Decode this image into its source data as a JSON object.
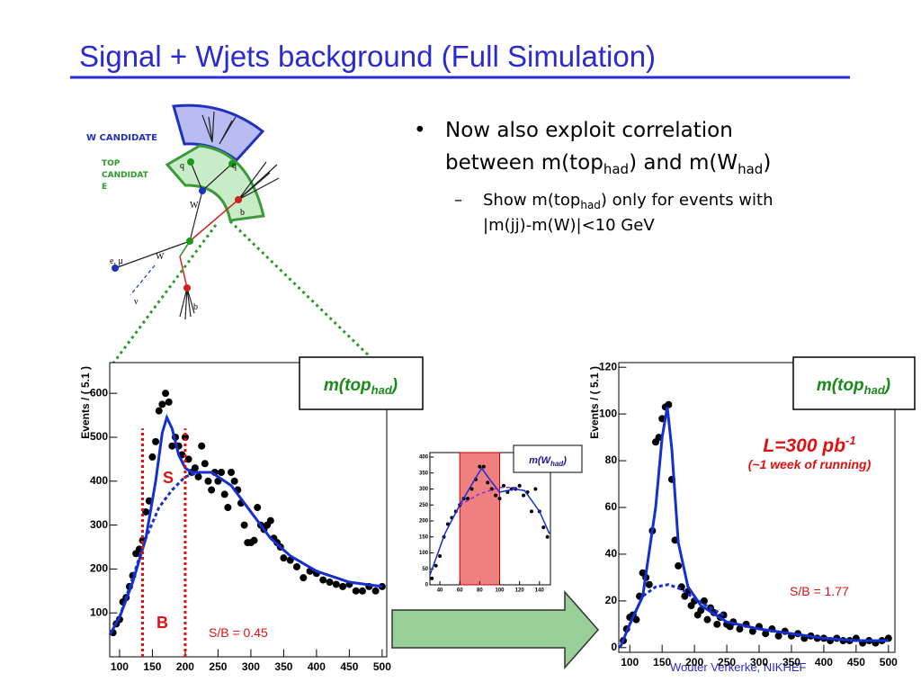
{
  "title": "Signal + Wjets background (Full Simulation)",
  "diagram": {
    "w_candidate": "W CANDIDATE",
    "top_candidate": [
      "TOP",
      "CANDIDAT",
      "E"
    ],
    "labels": [
      "q",
      "q",
      "W",
      "b",
      "e, μ",
      "W",
      "b",
      "ν"
    ]
  },
  "bullet": {
    "line1": "Now also exploit correlation",
    "line2": [
      "between m(top",
      "had",
      ") and m(W",
      "had",
      ")"
    ]
  },
  "subbullet": {
    "line1": [
      "Show m(top",
      "had",
      ") only for events with"
    ],
    "line2": "|m(jj)-m(W)|<10 GeV"
  },
  "footer": "Wouter Verkerke, NIKHEF",
  "chart_data": [
    {
      "type": "scatter",
      "y_label": "Events / ( 5.1 )",
      "box_label": [
        "m(top",
        "had",
        ")"
      ],
      "annotations": [
        "S",
        "B",
        "S/B = 0.45"
      ],
      "xlim": [
        85,
        507
      ],
      "ylim": [
        0,
        670
      ],
      "xticks": [
        100,
        150,
        200,
        250,
        300,
        350,
        400,
        450,
        500
      ],
      "yticks": [
        100,
        200,
        300,
        400,
        500,
        600
      ],
      "color": "#000000",
      "x": [
        90,
        95,
        100,
        105,
        110,
        115,
        120,
        125,
        130,
        135,
        140,
        145,
        150,
        155,
        160,
        165,
        170,
        175,
        180,
        185,
        190,
        195,
        200,
        205,
        210,
        215,
        220,
        225,
        230,
        235,
        240,
        245,
        250,
        255,
        260,
        265,
        270,
        275,
        280,
        285,
        290,
        295,
        300,
        305,
        310,
        315,
        320,
        325,
        330,
        335,
        340,
        345,
        350,
        360,
        370,
        380,
        390,
        400,
        410,
        420,
        430,
        440,
        450,
        460,
        470,
        480,
        490,
        500
      ],
      "values": [
        55,
        75,
        85,
        125,
        135,
        160,
        185,
        235,
        245,
        265,
        330,
        355,
        455,
        490,
        560,
        575,
        600,
        580,
        480,
        500,
        480,
        460,
        500,
        450,
        420,
        430,
        410,
        480,
        440,
        400,
        380,
        420,
        400,
        420,
        370,
        340,
        420,
        400,
        380,
        350,
        300,
        260,
        260,
        265,
        340,
        300,
        290,
        300,
        310,
        270,
        260,
        250,
        225,
        220,
        205,
        180,
        195,
        190,
        175,
        170,
        165,
        160,
        165,
        150,
        150,
        160,
        150,
        160
      ],
      "lines": [
        {
          "color": "#1530d0",
          "dash": false,
          "x": [
            85,
            100,
            120,
            140,
            155,
            165,
            172,
            180,
            190,
            200,
            210,
            240,
            270,
            300,
            330,
            360,
            400,
            450,
            500
          ],
          "values": [
            50,
            90,
            170,
            270,
            400,
            510,
            545,
            520,
            460,
            430,
            420,
            420,
            390,
            330,
            270,
            230,
            195,
            170,
            160
          ]
        },
        {
          "color": "#1530d0",
          "dash": true,
          "x": [
            100,
            140,
            160,
            180,
            200,
            220
          ],
          "values": [
            90,
            270,
            340,
            380,
            410,
            420
          ]
        }
      ],
      "markers_x": [
        135,
        200
      ],
      "marker_color": "#e01010"
    },
    {
      "type": "scatter",
      "box_label": [
        "m(W",
        "had",
        ")"
      ],
      "xlim": [
        30,
        151
      ],
      "ylim": [
        0,
        414
      ],
      "xticks": [
        40,
        60,
        80,
        100,
        120,
        140
      ],
      "yticks": [
        0,
        50,
        100,
        150,
        200,
        250,
        300,
        350,
        400
      ],
      "color": "#000000",
      "x": [
        32,
        36,
        40,
        44,
        48,
        52,
        56,
        60,
        64,
        68,
        72,
        76,
        80,
        84,
        88,
        92,
        96,
        100,
        104,
        108,
        112,
        116,
        120,
        124,
        128,
        132,
        136,
        140,
        144,
        148
      ],
      "values": [
        20,
        60,
        90,
        150,
        190,
        210,
        230,
        250,
        270,
        270,
        300,
        330,
        370,
        370,
        320,
        300,
        280,
        270,
        310,
        290,
        300,
        300,
        310,
        280,
        290,
        230,
        300,
        230,
        180,
        150
      ],
      "lines": [
        {
          "color": "#1530d0",
          "dash": false,
          "x": [
            30,
            45,
            60,
            75,
            82,
            90,
            100,
            115,
            125,
            140,
            150
          ],
          "values": [
            30,
            160,
            250,
            330,
            365,
            330,
            290,
            300,
            295,
            230,
            160
          ]
        },
        {
          "color": "#8a2be2",
          "dash": true,
          "x": [
            60,
            80,
            100,
            120
          ],
          "values": [
            250,
            285,
            305,
            305
          ]
        }
      ],
      "band": [
        60,
        100
      ],
      "band_color": "#f08080"
    },
    {
      "type": "scatter",
      "y_label": "Events / ( 5.1 )",
      "box_label": [
        "m(top",
        "had",
        ")"
      ],
      "annotations": [
        [
          "L=300 pb",
          "-1"
        ],
        "(~1 week of running)",
        "S/B = 1.77"
      ],
      "xlim": [
        83,
        510
      ],
      "ylim": [
        -2,
        122
      ],
      "xticks": [
        100,
        150,
        200,
        250,
        300,
        350,
        400,
        450,
        500
      ],
      "yticks": [
        0,
        20,
        40,
        60,
        80,
        100,
        120
      ],
      "color": "#000000",
      "x": [
        90,
        95,
        100,
        105,
        110,
        115,
        120,
        125,
        130,
        135,
        140,
        145,
        150,
        155,
        160,
        165,
        170,
        175,
        180,
        185,
        190,
        195,
        200,
        205,
        210,
        215,
        220,
        225,
        230,
        235,
        240,
        245,
        250,
        255,
        260,
        270,
        280,
        290,
        300,
        310,
        320,
        330,
        340,
        350,
        360,
        370,
        380,
        390,
        400,
        410,
        420,
        430,
        440,
        450,
        460,
        470,
        480,
        490,
        500
      ],
      "values": [
        3,
        8,
        13,
        14,
        12,
        22,
        32,
        30,
        27,
        50,
        88,
        90,
        98,
        103,
        104,
        72,
        46,
        35,
        26,
        22,
        24,
        18,
        20,
        14,
        16,
        20,
        12,
        17,
        15,
        10,
        13,
        14,
        10,
        9,
        11,
        8,
        10,
        7,
        9,
        6,
        8,
        5,
        7,
        5,
        6,
        4,
        5,
        4,
        4,
        3,
        4,
        3,
        3,
        4,
        2,
        3,
        2,
        3,
        4
      ],
      "lines": [
        {
          "color": "#1530d0",
          "dash": false,
          "x": [
            85,
            100,
            120,
            140,
            150,
            158,
            165,
            175,
            190,
            210,
            250,
            300,
            350,
            400,
            450,
            500
          ],
          "values": [
            0,
            10,
            22,
            60,
            90,
            103,
            85,
            45,
            26,
            18,
            11,
            8,
            6,
            4,
            3,
            3
          ]
        },
        {
          "color": "#1530d0",
          "dash": true,
          "x": [
            100,
            120,
            140,
            160,
            180,
            200,
            250
          ],
          "values": [
            10,
            22,
            26,
            27,
            25,
            21,
            13
          ]
        }
      ]
    }
  ]
}
